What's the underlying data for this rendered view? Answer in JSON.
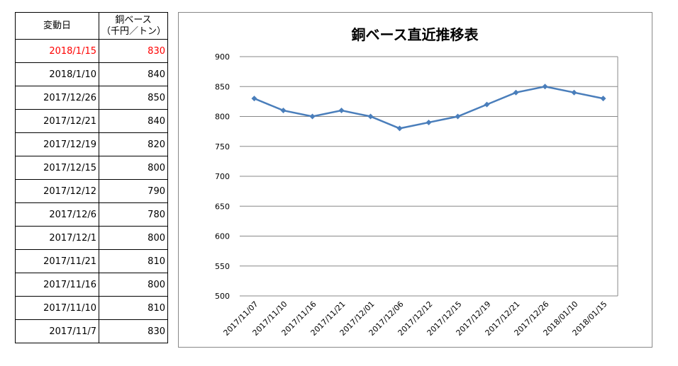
{
  "table": {
    "headers": [
      "変動日",
      "銅ベース\n（千円／トン）"
    ],
    "header_date": "変動日",
    "header_price_1": "銅ベース",
    "header_price_2": "（千円／トン）",
    "rows": [
      {
        "date": "2018/1/15",
        "price": "830",
        "highlight": "#ff0000"
      },
      {
        "date": "2018/1/10",
        "price": "840"
      },
      {
        "date": "2017/12/26",
        "price": "850"
      },
      {
        "date": "2017/12/21",
        "price": "840"
      },
      {
        "date": "2017/12/19",
        "price": "820"
      },
      {
        "date": "2017/12/15",
        "price": "800"
      },
      {
        "date": "2017/12/12",
        "price": "790"
      },
      {
        "date": "2017/12/6",
        "price": "780"
      },
      {
        "date": "2017/12/1",
        "price": "800"
      },
      {
        "date": "2017/11/21",
        "price": "810"
      },
      {
        "date": "2017/11/16",
        "price": "800"
      },
      {
        "date": "2017/11/10",
        "price": "810"
      },
      {
        "date": "2017/11/7",
        "price": "830"
      }
    ]
  },
  "chart_data": {
    "type": "line",
    "title": "銅ベース直近推移表",
    "categories": [
      "2017/11/07",
      "2017/11/10",
      "2017/11/16",
      "2017/11/21",
      "2017/12/01",
      "2017/12/06",
      "2017/12/12",
      "2017/12/15",
      "2017/12/19",
      "2017/12/21",
      "2017/12/26",
      "2018/01/10",
      "2018/01/15"
    ],
    "values": [
      830,
      810,
      800,
      810,
      800,
      780,
      790,
      800,
      820,
      840,
      850,
      840,
      830
    ],
    "ylim": [
      500,
      900
    ],
    "yticks": [
      500,
      550,
      600,
      650,
      700,
      750,
      800,
      850,
      900
    ],
    "grid": true,
    "legend": "none",
    "color": "#4a7ebb",
    "marker": "diamond"
  }
}
